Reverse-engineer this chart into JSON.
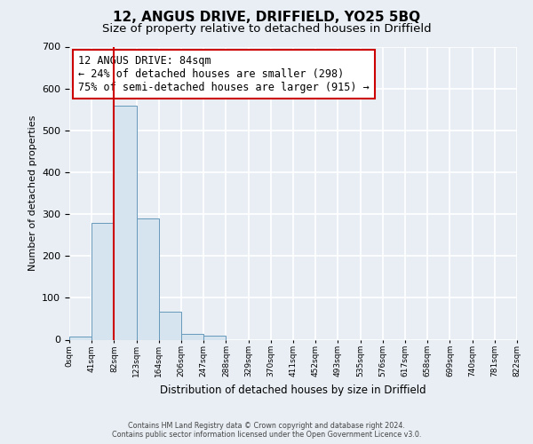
{
  "title": "12, ANGUS DRIVE, DRIFFIELD, YO25 5BQ",
  "subtitle": "Size of property relative to detached houses in Driffield",
  "xlabel": "Distribution of detached houses by size in Driffield",
  "ylabel": "Number of detached properties",
  "bar_values": [
    7,
    280,
    560,
    290,
    67,
    14,
    9,
    0,
    0,
    0,
    0,
    0,
    0,
    0,
    0,
    0,
    0,
    0,
    0,
    0
  ],
  "bin_labels": [
    "0sqm",
    "41sqm",
    "82sqm",
    "123sqm",
    "164sqm",
    "206sqm",
    "247sqm",
    "288sqm",
    "329sqm",
    "370sqm",
    "411sqm",
    "452sqm",
    "493sqm",
    "535sqm",
    "576sqm",
    "617sqm",
    "658sqm",
    "699sqm",
    "740sqm",
    "781sqm",
    "822sqm"
  ],
  "ylim": [
    0,
    700
  ],
  "yticks": [
    0,
    100,
    200,
    300,
    400,
    500,
    600,
    700
  ],
  "bar_color": "#d6e4f0",
  "bar_edge_color": "#6699bb",
  "property_line_x": 2.0,
  "property_line_color": "#cc0000",
  "annotation_line1": "12 ANGUS DRIVE: 84sqm",
  "annotation_line2": "← 24% of detached houses are smaller (298)",
  "annotation_line3": "75% of semi-detached houses are larger (915) →",
  "annotation_box_color": "#ffffff",
  "annotation_box_edge": "#cc0000",
  "annotation_fontsize": 8.5,
  "title_fontsize": 11,
  "subtitle_fontsize": 9.5,
  "footer_line1": "Contains HM Land Registry data © Crown copyright and database right 2024.",
  "footer_line2": "Contains public sector information licensed under the Open Government Licence v3.0.",
  "background_color": "#e8eef4",
  "plot_bg_color": "#e8eef4",
  "grid_color": "#ffffff"
}
